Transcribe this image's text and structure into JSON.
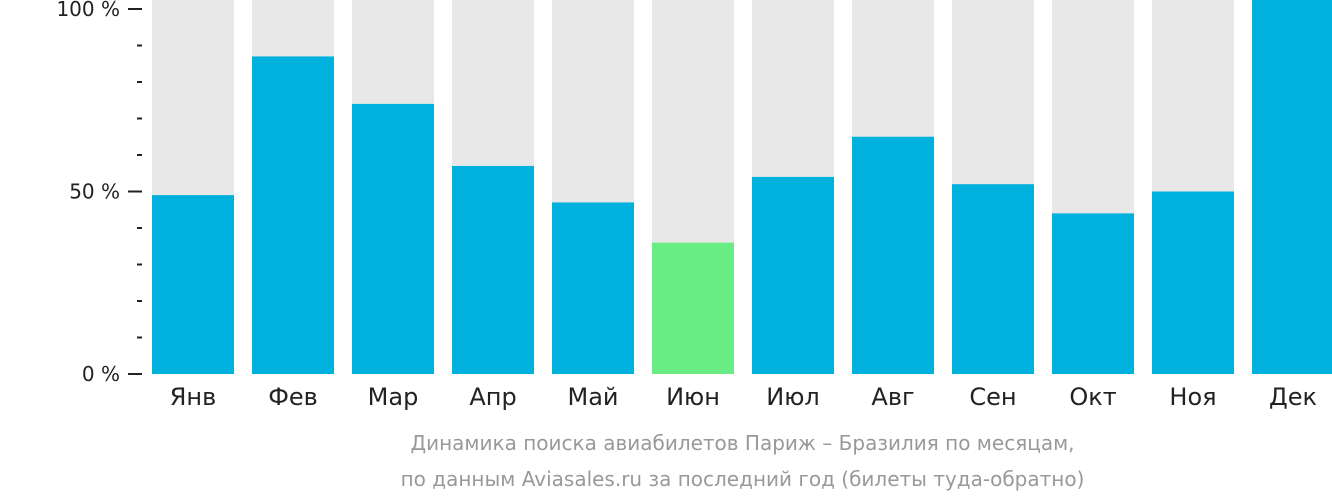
{
  "caption": {
    "line1": "Динамика поиска авиабилетов Париж – Бразилия по месяцам,",
    "line2": "по данным Aviasales.ru за последний год (билеты туда-обратно)"
  },
  "colors": {
    "bar": "#00b0dd",
    "highlight": "#6aec85",
    "track": "#e8e8e8",
    "axis": "#222222",
    "caption": "#999999"
  },
  "chart_data": {
    "type": "bar",
    "categories": [
      "Янв",
      "Фев",
      "Мар",
      "Апр",
      "Май",
      "Июн",
      "Июл",
      "Авг",
      "Сен",
      "Окт",
      "Ноя",
      "Дек"
    ],
    "values": [
      49,
      87,
      74,
      57,
      47,
      36,
      54,
      65,
      52,
      44,
      50,
      103
    ],
    "highlight_index": 5,
    "ylim": [
      0,
      100
    ],
    "yticks": [
      {
        "value": 0,
        "label": "0 %"
      },
      {
        "value": 50,
        "label": "50 %"
      },
      {
        "value": 100,
        "label": "100 %"
      }
    ],
    "minor_ticks": [
      10,
      20,
      30,
      40,
      60,
      70,
      80,
      90
    ],
    "title": "",
    "xlabel": "",
    "ylabel": ""
  }
}
